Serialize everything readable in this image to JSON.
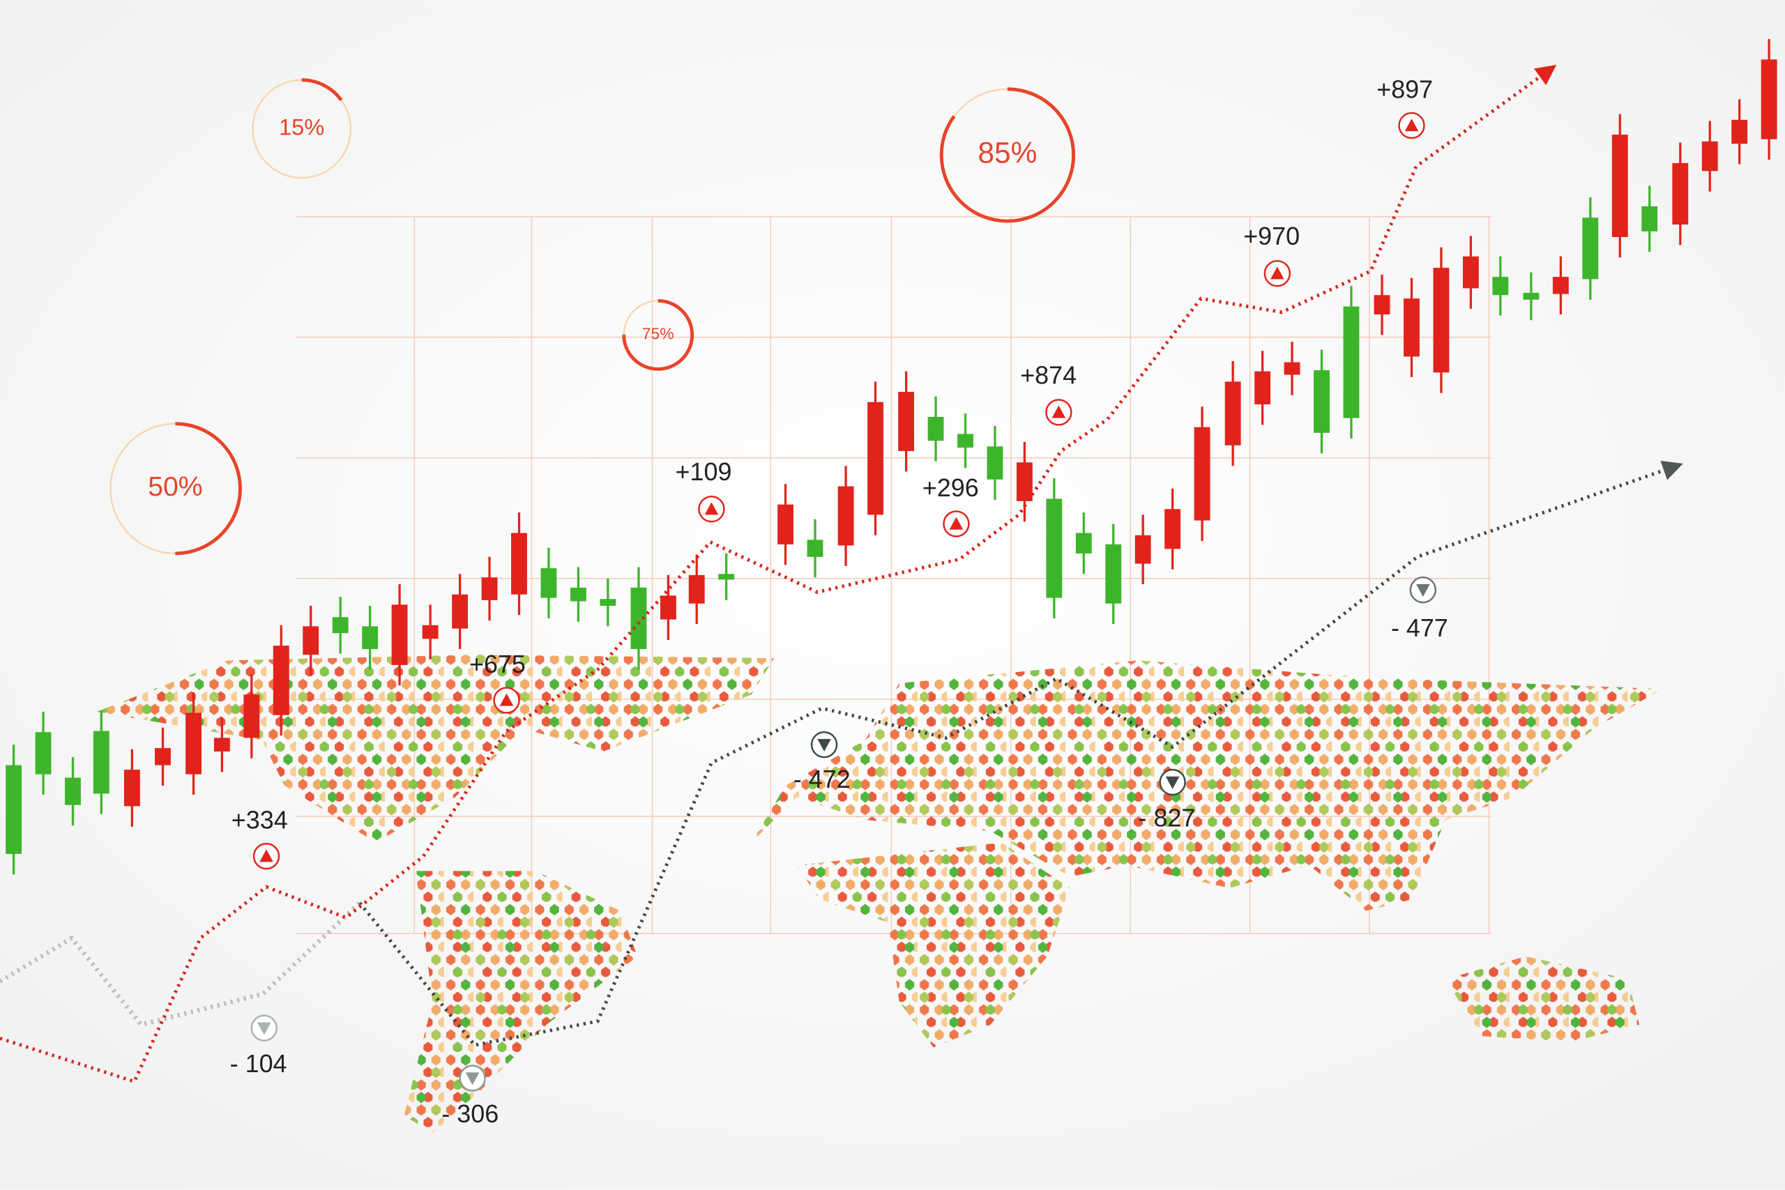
{
  "gauges": [
    {
      "label": "15%",
      "value": 15
    },
    {
      "label": "85%",
      "value": 85
    },
    {
      "label": "75%",
      "value": 75
    },
    {
      "label": "50%",
      "value": 50
    }
  ],
  "gains": [
    "+334",
    "+675",
    "+109",
    "+296",
    "+874",
    "+970",
    "+897"
  ],
  "losses": [
    "- 104",
    "- 306",
    "- 472",
    "- 827",
    "- 477"
  ]
}
